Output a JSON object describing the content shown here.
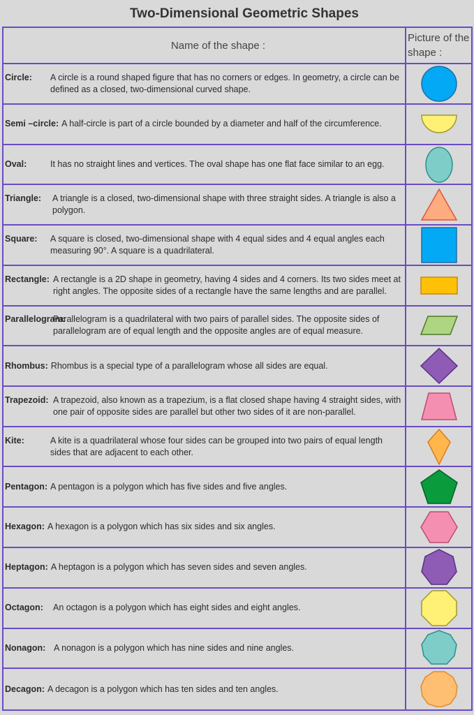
{
  "title": "Two-Dimensional Geometric Shapes",
  "header": {
    "name_col": "Name of the shape :",
    "picture_col": "Picture of the shape :"
  },
  "rows": [
    {
      "label": "Circle:",
      "text": "A circle is a round shaped figure that has no corners or edges. In geometry, a circle can be defined as a closed, two-dimensional curved shape.",
      "icon": "circle-icon",
      "color": "#03a9f4"
    },
    {
      "label": "Semi –circle:",
      "text": "A half-circle is part of a circle bounded by a diameter and half of the circumference.",
      "icon": "semicircle-icon",
      "color": "#fff176"
    },
    {
      "label": "Oval:",
      "text": "It has no straight lines and vertices. The oval shape has one flat face similar to an egg.",
      "icon": "oval-icon",
      "color": "#7ecdc9"
    },
    {
      "label": "Triangle:",
      "text": "A triangle is a closed, two-dimensional shape with three straight sides. A triangle is also a polygon.",
      "icon": "triangle-icon",
      "color": "#ffab80"
    },
    {
      "label": "Square:",
      "text": "A square is closed, two-dimensional shape with 4 equal sides and 4 equal angles each measuring 90°. A square is a quadrilateral.",
      "icon": "square-icon",
      "color": "#03a9f4"
    },
    {
      "label": "Rectangle:",
      "text": "A rectangle is a 2D shape in geometry, having 4 sides and 4 corners. Its two sides meet at right angles. The opposite sides of a rectangle have the same lengths and are parallel.",
      "icon": "rectangle-icon",
      "color": "#ffc107"
    },
    {
      "label": "Parallelogram:",
      "text": "Parallelogram is a quadrilateral with two pairs of parallel sides. The opposite sides of parallelogram are of equal length and the opposite angles are of equal measure.",
      "icon": "parallelogram-icon",
      "color": "#aed581"
    },
    {
      "label": "Rhombus:",
      "text": "Rhombus is a special type of a parallelogram whose all sides are equal.",
      "icon": "rhombus-icon",
      "color": "#8e5bb5"
    },
    {
      "label": "Trapezoid:",
      "text": "A trapezoid, also known as a trapezium, is a flat closed shape having 4 straight sides, with one pair of opposite sides are  parallel but other two sides of it are non-parallel.",
      "icon": "trapezoid-icon",
      "color": "#f48fb1"
    },
    {
      "label": "Kite:",
      "text": "A kite is a quadrilateral whose four sides can be grouped into two pairs of equal length sides that are adjacent to each other.",
      "icon": "kite-icon",
      "color": "#ffb74d"
    },
    {
      "label": "Pentagon:",
      "text": "A pentagon is a polygon which has five sides and five angles.",
      "icon": "pentagon-icon",
      "color": "#0a9b3c"
    },
    {
      "label": "Hexagon:",
      "text": "A hexagon is a polygon which has six sides and six angles.",
      "icon": "hexagon-icon",
      "color": "#f48fb1"
    },
    {
      "label": "Heptagon:",
      "text": "A heptagon is a polygon which has seven sides and seven angles.",
      "icon": "heptagon-icon",
      "color": "#8e5bb5"
    },
    {
      "label": "Octagon:",
      "text": "An octagon is a polygon which has eight sides and eight angles.",
      "icon": "octagon-icon",
      "color": "#fff176"
    },
    {
      "label": "Nonagon:",
      "text": "A nonagon is a polygon which has nine sides and nine angles.",
      "icon": "nonagon-icon",
      "color": "#7ecdc9"
    },
    {
      "label": "Decagon:",
      "text": "A decagon is a polygon which has ten sides and ten angles.",
      "icon": "decagon-icon",
      "color": "#ffbf73"
    }
  ]
}
